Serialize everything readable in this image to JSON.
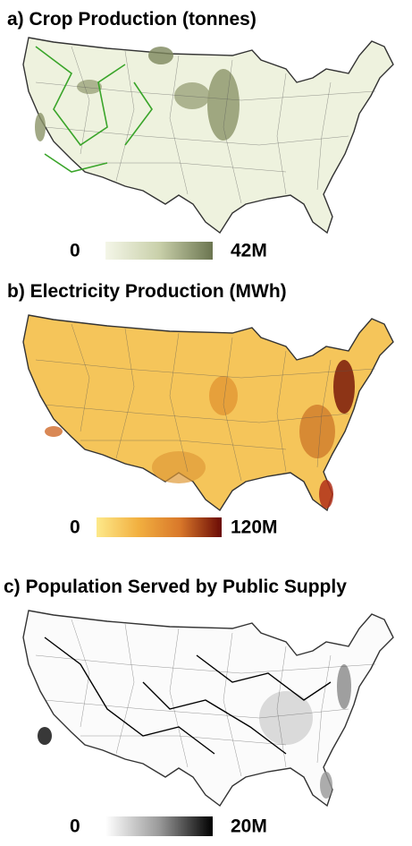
{
  "panels": [
    {
      "title": "a) Crop Production (tonnes)",
      "colorbar": {
        "min_label": "0",
        "max_label": "42M",
        "colors": [
          "#f4f6e8",
          "#c9d0aa",
          "#6b7550"
        ]
      }
    },
    {
      "title": "b) Electricity Production (MWh)",
      "colorbar": {
        "min_label": "0",
        "max_label": "120M",
        "colors": [
          "#fde98a",
          "#f2b040",
          "#d9782a",
          "#6a0a05"
        ]
      }
    },
    {
      "title": "c) Population Served by Public Supply",
      "colorbar": {
        "min_label": "0",
        "max_label": "20M",
        "colors": [
          "#ffffff",
          "#9a9a9a",
          "#000000"
        ]
      }
    }
  ]
}
